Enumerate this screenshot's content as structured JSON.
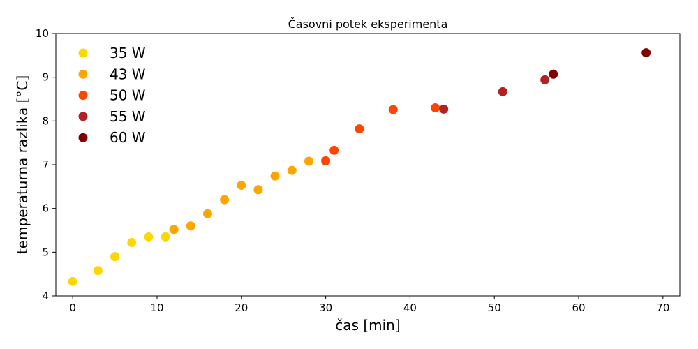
{
  "chart_data": {
    "type": "scatter",
    "title": "Časovni potek eksperimenta",
    "xlabel": "čas [min]",
    "ylabel": "temperaturna razlika [°C]",
    "xlim": [
      -2,
      72
    ],
    "ylim": [
      4,
      10
    ],
    "xticks": [
      0,
      10,
      20,
      30,
      40,
      50,
      60,
      70
    ],
    "yticks": [
      4,
      5,
      6,
      7,
      8,
      9,
      10
    ],
    "grid": false,
    "legend_position": "top-left",
    "series": [
      {
        "name": "35 W",
        "color": "#ffd700",
        "points": [
          [
            0,
            4.33
          ],
          [
            3,
            4.58
          ],
          [
            5,
            4.9
          ],
          [
            7,
            5.22
          ],
          [
            9,
            5.35
          ],
          [
            11,
            5.35
          ]
        ]
      },
      {
        "name": "43 W",
        "color": "#ffa500",
        "points": [
          [
            12,
            5.52
          ],
          [
            14,
            5.6
          ],
          [
            16,
            5.88
          ],
          [
            18,
            6.2
          ],
          [
            20,
            6.53
          ],
          [
            22,
            6.43
          ],
          [
            24,
            6.74
          ],
          [
            26,
            6.87
          ],
          [
            28,
            7.08
          ]
        ]
      },
      {
        "name": "50 W",
        "color": "#ff4500",
        "points": [
          [
            30,
            7.09
          ],
          [
            31,
            7.33
          ],
          [
            34,
            7.82
          ],
          [
            38,
            8.26
          ],
          [
            43,
            8.3
          ]
        ]
      },
      {
        "name": "55 W",
        "color": "#b22222",
        "points": [
          [
            44,
            8.27
          ],
          [
            51,
            8.67
          ],
          [
            56,
            8.94
          ]
        ]
      },
      {
        "name": "60 W",
        "color": "#800000",
        "points": [
          [
            57,
            9.07
          ],
          [
            68,
            9.56
          ]
        ]
      }
    ]
  }
}
